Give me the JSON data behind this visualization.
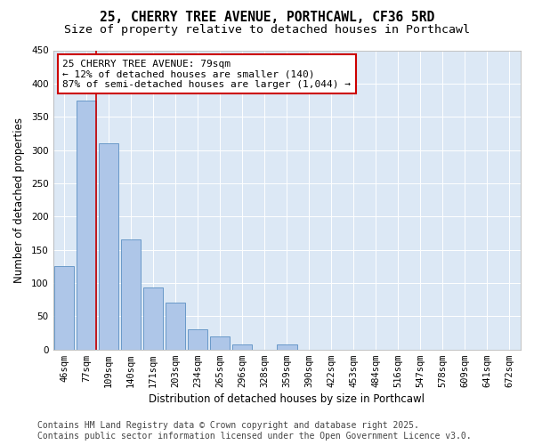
{
  "title_line1": "25, CHERRY TREE AVENUE, PORTHCAWL, CF36 5RD",
  "title_line2": "Size of property relative to detached houses in Porthcawl",
  "xlabel": "Distribution of detached houses by size in Porthcawl",
  "ylabel": "Number of detached properties",
  "categories": [
    "46sqm",
    "77sqm",
    "109sqm",
    "140sqm",
    "171sqm",
    "203sqm",
    "234sqm",
    "265sqm",
    "296sqm",
    "328sqm",
    "359sqm",
    "390sqm",
    "422sqm",
    "453sqm",
    "484sqm",
    "516sqm",
    "547sqm",
    "578sqm",
    "609sqm",
    "641sqm",
    "672sqm"
  ],
  "values": [
    125,
    375,
    310,
    165,
    93,
    70,
    30,
    20,
    8,
    0,
    8,
    0,
    0,
    0,
    0,
    0,
    0,
    0,
    0,
    0,
    0
  ],
  "bar_color": "#aec6e8",
  "bar_edge_color": "#5a8fc2",
  "ylim": [
    0,
    450
  ],
  "yticks": [
    0,
    50,
    100,
    150,
    200,
    250,
    300,
    350,
    400,
    450
  ],
  "vline_x": 1,
  "annotation_title": "25 CHERRY TREE AVENUE: 79sqm",
  "annotation_line2": "← 12% of detached houses are smaller (140)",
  "annotation_line3": "87% of semi-detached houses are larger (1,044) →",
  "annotation_box_facecolor": "#ffffff",
  "annotation_box_edgecolor": "#cc0000",
  "vline_color": "#cc0000",
  "plot_bg_color": "#dce8f5",
  "fig_bg_color": "#ffffff",
  "footer_line1": "Contains HM Land Registry data © Crown copyright and database right 2025.",
  "footer_line2": "Contains public sector information licensed under the Open Government Licence v3.0.",
  "grid_color": "#ffffff",
  "title_fontsize": 10.5,
  "subtitle_fontsize": 9.5,
  "axis_label_fontsize": 8.5,
  "tick_fontsize": 7.5,
  "annotation_fontsize": 8,
  "footer_fontsize": 7
}
